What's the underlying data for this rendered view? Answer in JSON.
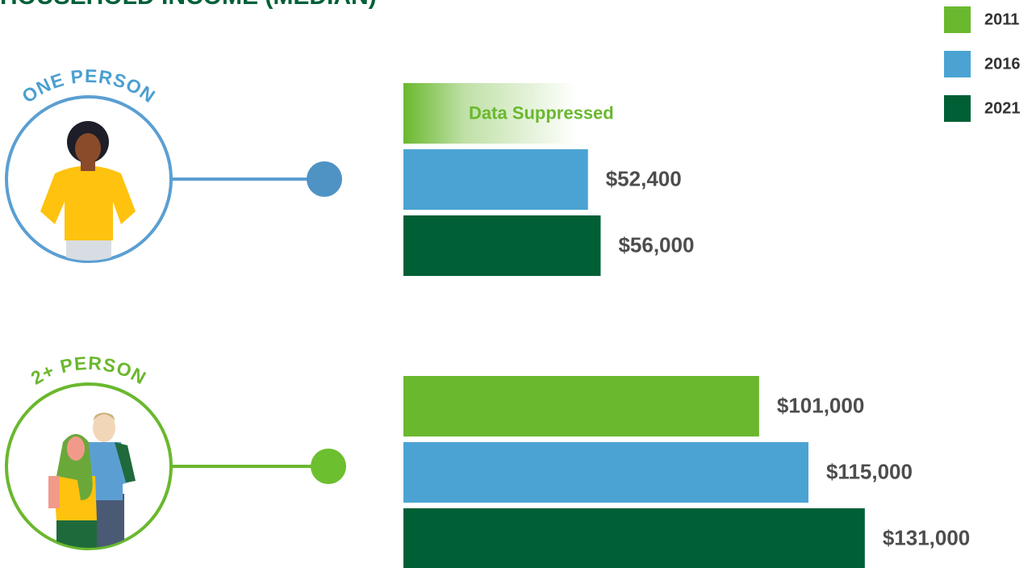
{
  "chart_data": {
    "type": "bar",
    "orientation": "horizontal",
    "title": "HOUSEHOLD INCOME (MEDIAN)",
    "categories": [
      "ONE PERSON",
      "2+ PERSON"
    ],
    "series": [
      {
        "name": "2011",
        "color": "#6ab82e",
        "values": [
          null,
          101000
        ],
        "value_labels": [
          "Data Suppressed",
          "$101,000"
        ]
      },
      {
        "name": "2016",
        "color": "#4ba3d3",
        "values": [
          52400,
          115000
        ],
        "value_labels": [
          "$52,400",
          "$115,000"
        ]
      },
      {
        "name": "2021",
        "color": "#005f35",
        "values": [
          56000,
          131000
        ],
        "value_labels": [
          "$56,000",
          "$131,000"
        ]
      }
    ],
    "legend": "top-right"
  }
}
